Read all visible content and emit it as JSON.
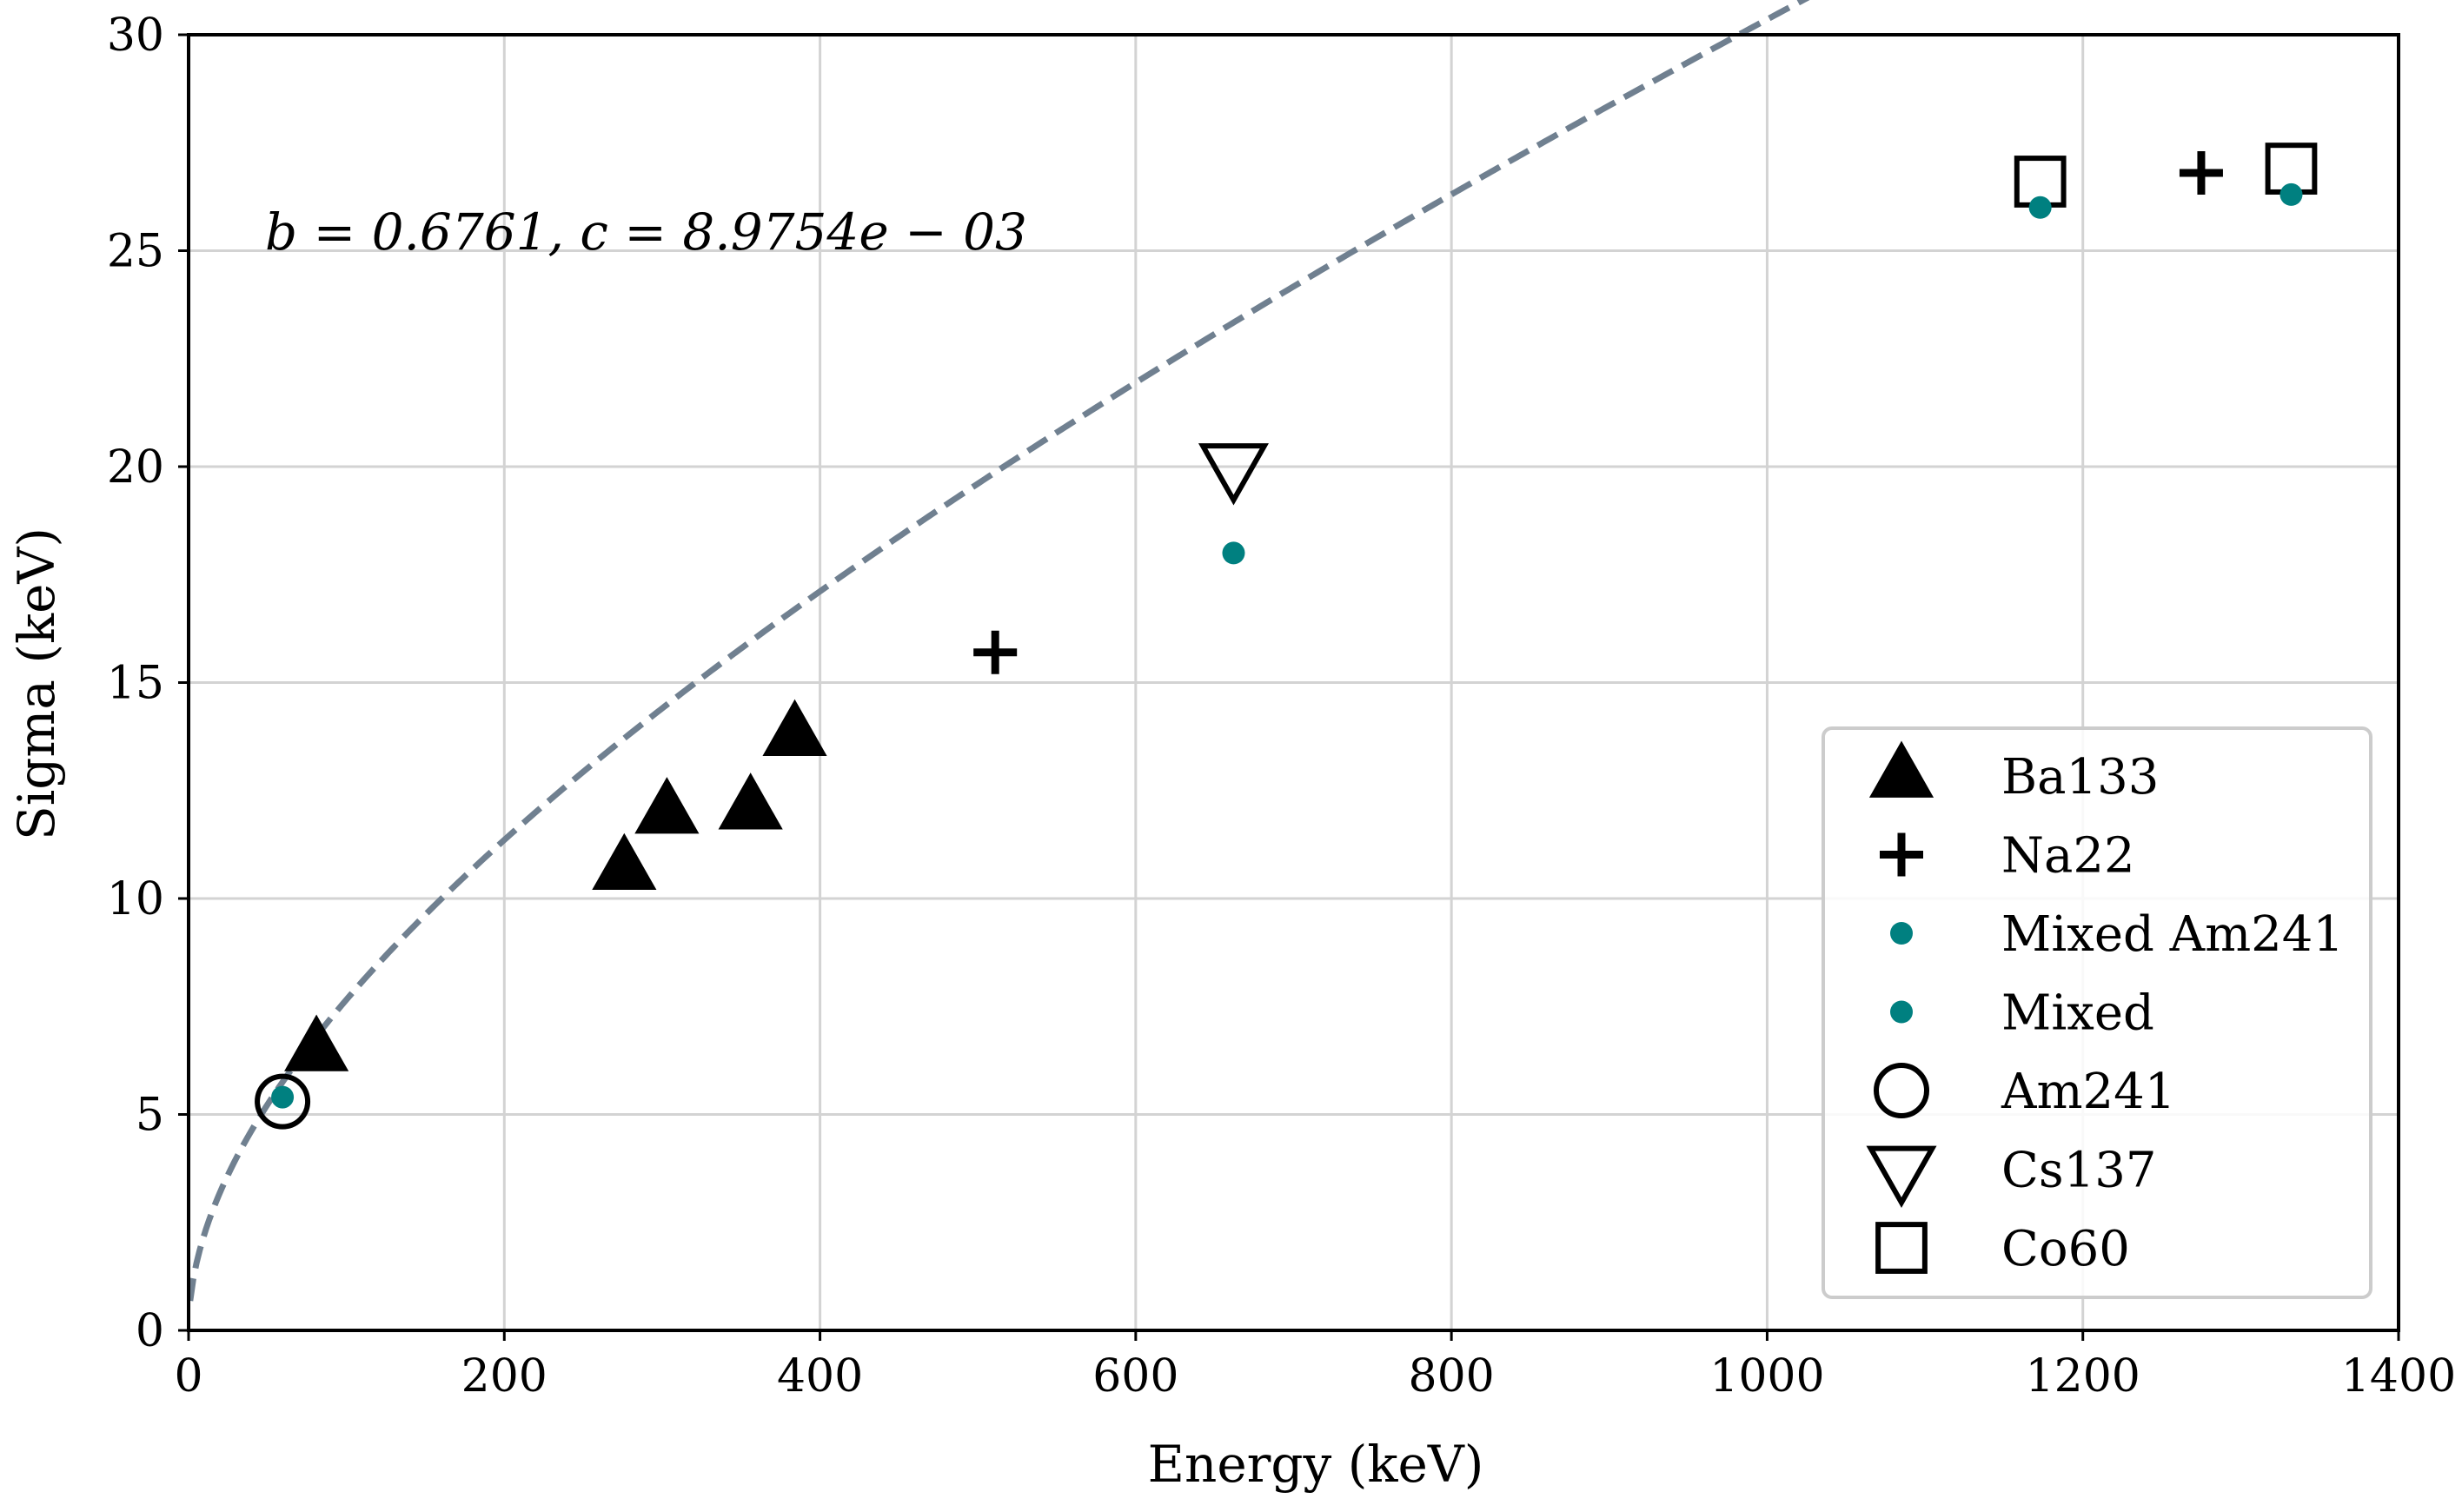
{
  "chart_data": {
    "type": "scatter",
    "title": "",
    "xlabel": "Energy (keV)",
    "ylabel": "Sigma (keV)",
    "xlim": [
      0,
      1400
    ],
    "ylim": [
      0,
      30
    ],
    "xticks": [
      "0",
      "200",
      "400",
      "600",
      "800",
      "1000",
      "1200",
      "1400"
    ],
    "yticks": [
      "0",
      "5",
      "10",
      "15",
      "20",
      "25",
      "30"
    ],
    "grid": true,
    "legend_position": "bottom-right",
    "annotation": "b = 0.6761, c = 8.9754e − 03",
    "fit": {
      "name": "fit",
      "function": "sigma = b*sqrt(E) + c*E",
      "b": 0.6761,
      "c": 0.0089754,
      "style": "dashed",
      "color": "#708090"
    },
    "series": [
      {
        "name": "Ba133",
        "marker": "triangle-up",
        "filled": true,
        "color": "#000000",
        "points": [
          [
            81,
            6.5
          ],
          [
            276,
            10.7
          ],
          [
            303,
            12.0
          ],
          [
            356,
            12.1
          ],
          [
            384,
            13.8
          ]
        ]
      },
      {
        "name": "Na22",
        "marker": "plus",
        "filled": true,
        "color": "#000000",
        "points": [
          [
            511,
            15.7
          ],
          [
            1275,
            26.8
          ]
        ]
      },
      {
        "name": "Mixed Am241",
        "marker": "dot",
        "filled": true,
        "color": "#008080",
        "points": [
          [
            59.5,
            5.4
          ]
        ]
      },
      {
        "name": "Mixed",
        "marker": "dot",
        "filled": true,
        "color": "#008080",
        "points": [
          [
            662,
            18.0
          ],
          [
            1173,
            26.0
          ],
          [
            1332,
            26.3
          ]
        ]
      },
      {
        "name": "Am241",
        "marker": "circle",
        "filled": false,
        "color": "#000000",
        "points": [
          [
            59.5,
            5.3
          ]
        ]
      },
      {
        "name": "Cs137",
        "marker": "triangle-down",
        "filled": false,
        "color": "#000000",
        "points": [
          [
            662,
            20.0
          ]
        ]
      },
      {
        "name": "Co60",
        "marker": "square",
        "filled": false,
        "color": "#000000",
        "points": [
          [
            1173,
            26.6
          ],
          [
            1332,
            26.9
          ]
        ]
      }
    ]
  }
}
